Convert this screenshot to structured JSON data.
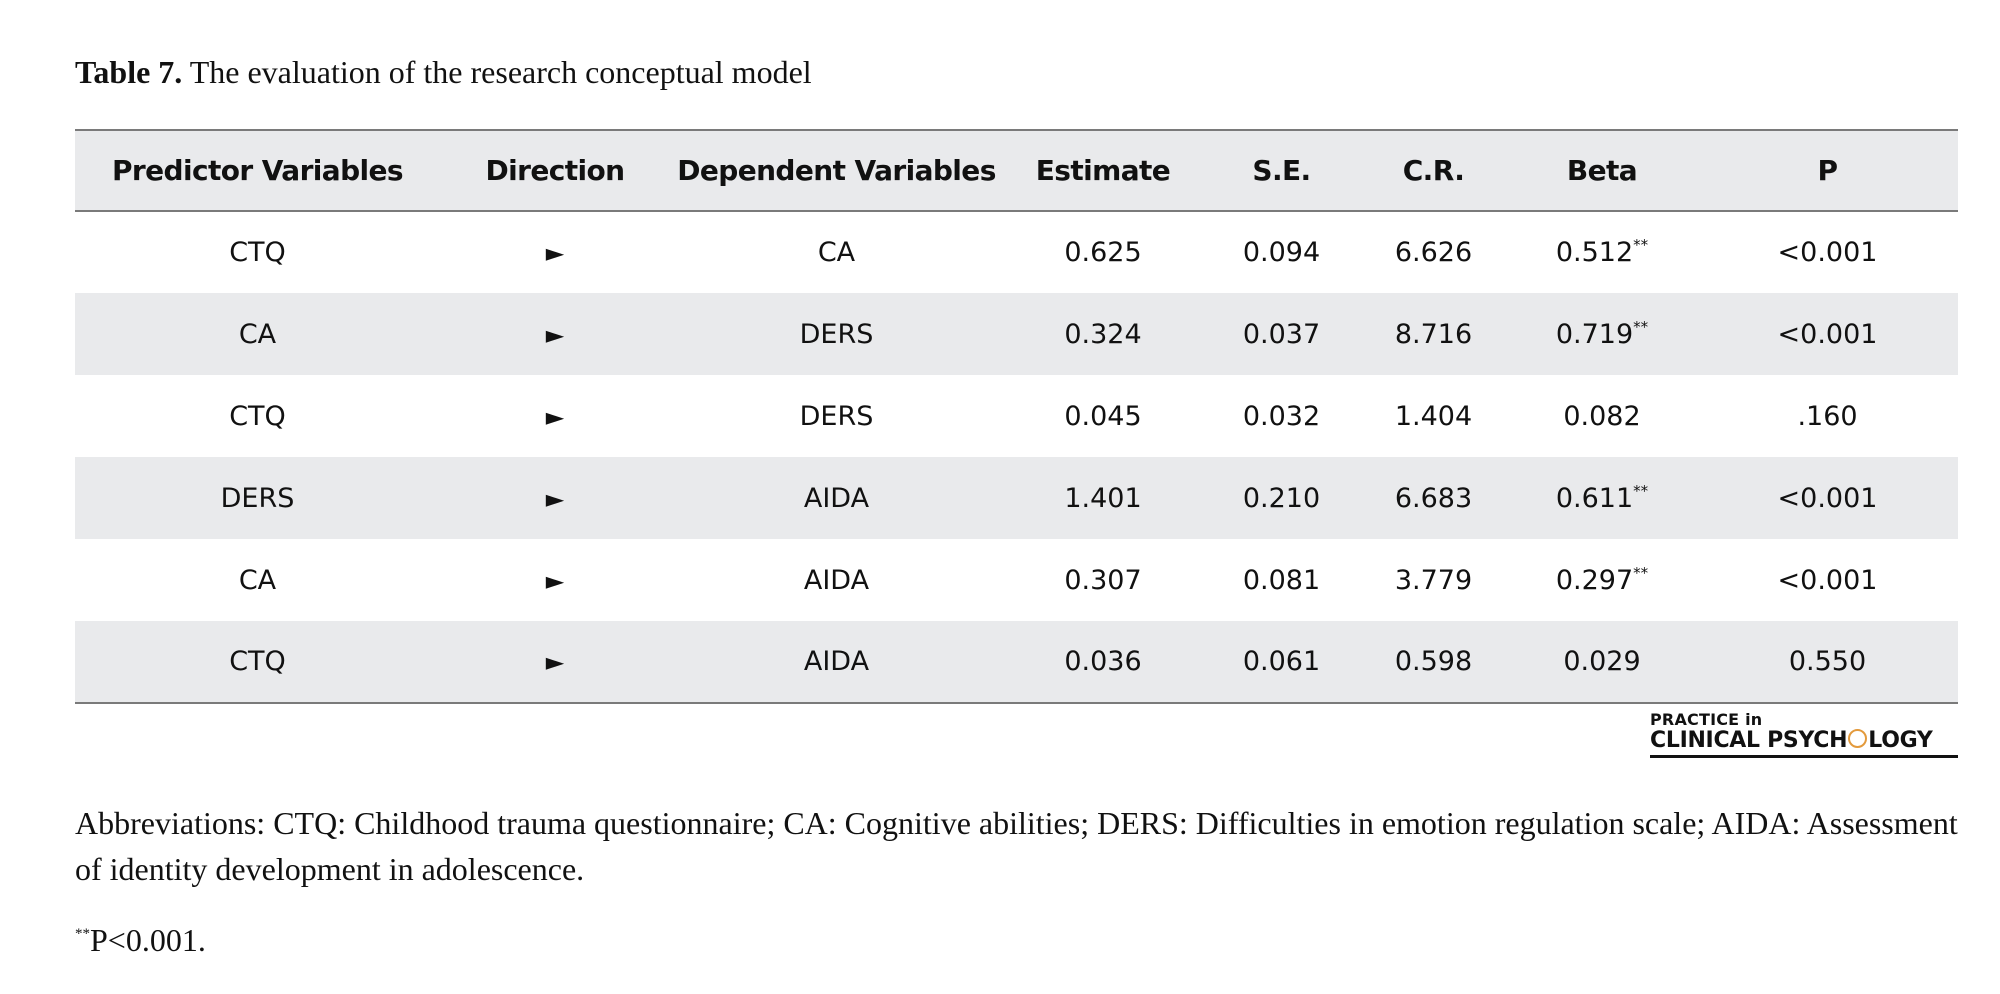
{
  "caption": {
    "label": "Table 7.",
    "text": "The evaluation of the research conceptual model"
  },
  "table": {
    "headers": [
      "Predictor Variables",
      "Direction",
      "Dependent Variables",
      "Estimate",
      "S.E.",
      "C.R.",
      "Beta",
      "P"
    ],
    "direction_icon": "right-triangle-arrow-icon",
    "rows": [
      {
        "predictor": "CTQ",
        "direction": "►",
        "dependent": "CA",
        "estimate": "0.625",
        "se": "0.094",
        "cr": "6.626",
        "beta": "0.512",
        "beta_sig": "**",
        "p": "<0.001"
      },
      {
        "predictor": "CA",
        "direction": "►",
        "dependent": "DERS",
        "estimate": "0.324",
        "se": "0.037",
        "cr": "8.716",
        "beta": "0.719",
        "beta_sig": "**",
        "p": "<0.001"
      },
      {
        "predictor": "CTQ",
        "direction": "►",
        "dependent": "DERS",
        "estimate": "0.045",
        "se": "0.032",
        "cr": "1.404",
        "beta": "0.082",
        "beta_sig": "",
        "p": ".160"
      },
      {
        "predictor": "DERS",
        "direction": "►",
        "dependent": "AIDA",
        "estimate": "1.401",
        "se": "0.210",
        "cr": "6.683",
        "beta": "0.611",
        "beta_sig": "**",
        "p": "<0.001"
      },
      {
        "predictor": "CA",
        "direction": "►",
        "dependent": "AIDA",
        "estimate": "0.307",
        "se": "0.081",
        "cr": "3.779",
        "beta": "0.297",
        "beta_sig": "**",
        "p": "<0.001"
      },
      {
        "predictor": "CTQ",
        "direction": "►",
        "dependent": "AIDA",
        "estimate": "0.036",
        "se": "0.061",
        "cr": "0.598",
        "beta": "0.029",
        "beta_sig": "",
        "p": "0.550"
      }
    ]
  },
  "logo": {
    "line1": "PRACTICE in",
    "line2_before": "CLINICAL PSYCH",
    "line2_after": "LOGY",
    "icon": "psi-circle-icon",
    "accent_color": "#e39a3c"
  },
  "notes": {
    "abbreviations": "Abbreviations: CTQ: Childhood trauma questionnaire; CA: Cognitive abilities; DERS: Difficulties in emotion regulation scale; AIDA: Assessment of identity development in adolescence.",
    "footnote_marker": "**",
    "footnote_text": "P<0.001."
  },
  "colors": {
    "row_shade": "#e9eaec",
    "rule": "#7a7a7a"
  }
}
